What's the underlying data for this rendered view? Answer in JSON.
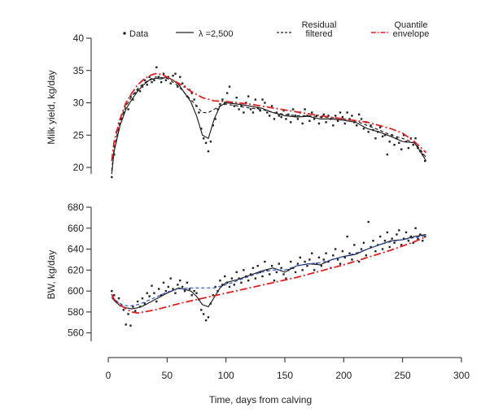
{
  "chart_data": [
    {
      "type": "line",
      "title": "",
      "ylabel": "Milk yield, kg/day",
      "xlabel": "",
      "xlim": [
        0,
        300
      ],
      "ylim": [
        19,
        40
      ],
      "yticks": [
        20,
        25,
        30,
        35,
        40
      ],
      "legend": {
        "placement": "top",
        "entries": [
          {
            "label": "Data",
            "style": "dots",
            "color": "#222222"
          },
          {
            "label": "λ =2,500",
            "style": "solid",
            "color": "#222222"
          },
          {
            "label": "Residual filtered",
            "style": "dashed",
            "color": "#222222"
          },
          {
            "label": "Quantile envelope",
            "style": "dashdot",
            "color": "#e02020"
          }
        ]
      },
      "series": [
        {
          "name": "λ =2,500",
          "style": "solid",
          "color": "#222222",
          "x": [
            3,
            5,
            10,
            15,
            20,
            25,
            30,
            35,
            40,
            45,
            50,
            55,
            60,
            65,
            70,
            75,
            80,
            85,
            90,
            95,
            100,
            110,
            120,
            130,
            140,
            150,
            160,
            170,
            180,
            190,
            200,
            210,
            220,
            230,
            240,
            250,
            260,
            265,
            270
          ],
          "y": [
            19.0,
            22.5,
            26.5,
            29.0,
            30.5,
            31.8,
            32.8,
            33.5,
            33.8,
            33.7,
            34.0,
            33.5,
            32.8,
            31.5,
            30.2,
            28.0,
            25.0,
            24.5,
            27.5,
            29.5,
            30.0,
            29.8,
            29.5,
            29.2,
            28.5,
            28.0,
            27.8,
            27.9,
            27.5,
            27.5,
            27.3,
            27.0,
            26.0,
            25.5,
            24.8,
            24.0,
            23.8,
            22.5,
            21.0
          ]
        },
        {
          "name": "Residual filtered",
          "style": "dashed",
          "color": "#222222",
          "x": [
            3,
            5,
            10,
            15,
            20,
            25,
            30,
            35,
            40,
            45,
            50,
            55,
            60,
            65,
            70,
            75,
            80,
            85,
            90,
            95,
            100,
            110,
            120,
            130,
            140,
            150,
            160,
            170,
            180,
            190,
            200,
            210,
            220,
            230,
            240,
            250,
            260,
            265,
            270
          ],
          "y": [
            19.5,
            23.0,
            27.0,
            29.5,
            31.0,
            32.2,
            33.0,
            33.6,
            34.0,
            33.9,
            33.8,
            33.2,
            32.5,
            31.5,
            30.5,
            29.5,
            28.5,
            28.5,
            29.0,
            29.5,
            29.8,
            29.5,
            29.2,
            29.0,
            28.5,
            28.2,
            28.0,
            28.0,
            27.8,
            27.7,
            27.5,
            27.2,
            26.5,
            25.8,
            25.0,
            24.5,
            23.8,
            22.8,
            21.5
          ]
        },
        {
          "name": "Quantile envelope",
          "style": "dashdot",
          "color": "#e02020",
          "x": [
            3,
            5,
            10,
            15,
            20,
            25,
            30,
            35,
            40,
            45,
            50,
            60,
            70,
            80,
            90,
            100,
            120,
            140,
            160,
            180,
            200,
            220,
            240,
            250,
            260,
            270
          ],
          "y": [
            21.0,
            24.0,
            27.5,
            30.0,
            31.5,
            32.8,
            33.6,
            34.2,
            34.5,
            34.4,
            34.0,
            33.0,
            31.8,
            30.8,
            30.3,
            30.2,
            29.8,
            29.2,
            28.6,
            28.0,
            27.5,
            27.0,
            26.0,
            25.3,
            24.0,
            22.3
          ]
        }
      ],
      "points": {
        "name": "Data",
        "x": [
          3,
          5,
          7,
          9,
          11,
          13,
          15,
          17,
          19,
          21,
          23,
          25,
          27,
          29,
          31,
          33,
          35,
          37,
          39,
          41,
          43,
          45,
          47,
          49,
          51,
          53,
          55,
          57,
          59,
          61,
          63,
          65,
          67,
          69,
          71,
          73,
          75,
          77,
          79,
          81,
          83,
          85,
          87,
          89,
          91,
          93,
          95,
          97,
          99,
          101,
          103,
          105,
          107,
          109,
          111,
          113,
          115,
          117,
          119,
          121,
          123,
          125,
          127,
          129,
          131,
          133,
          135,
          137,
          139,
          141,
          143,
          145,
          147,
          149,
          151,
          153,
          155,
          157,
          159,
          161,
          163,
          165,
          167,
          169,
          171,
          173,
          175,
          177,
          179,
          181,
          183,
          185,
          187,
          189,
          191,
          193,
          195,
          197,
          199,
          201,
          203,
          205,
          207,
          209,
          211,
          213,
          215,
          217,
          219,
          221,
          223,
          225,
          227,
          229,
          231,
          233,
          235,
          237,
          239,
          241,
          243,
          245,
          247,
          249,
          251,
          253,
          255,
          257,
          259,
          261,
          263,
          265,
          267,
          269
        ],
        "y": [
          18.5,
          22.0,
          25.5,
          26.8,
          27.5,
          28.5,
          29.8,
          29.0,
          31.0,
          30.5,
          31.5,
          32.0,
          31.8,
          32.5,
          33.5,
          32.8,
          34.0,
          33.2,
          33.5,
          35.5,
          34.0,
          33.2,
          34.5,
          33.5,
          34.0,
          33.0,
          34.2,
          34.5,
          32.5,
          34.0,
          33.0,
          32.5,
          31.0,
          32.0,
          31.5,
          30.5,
          29.5,
          28.5,
          26.0,
          24.5,
          23.8,
          22.5,
          24.0,
          26.5,
          27.5,
          29.0,
          29.8,
          30.5,
          30.0,
          31.5,
          32.5,
          30.0,
          29.5,
          30.8,
          29.0,
          29.5,
          28.5,
          30.0,
          31.0,
          29.0,
          28.5,
          30.5,
          29.2,
          28.8,
          30.5,
          30.0,
          28.5,
          28.0,
          29.5,
          27.5,
          28.5,
          28.0,
          27.8,
          28.8,
          27.5,
          28.2,
          27.0,
          29.0,
          28.0,
          27.5,
          28.5,
          26.8,
          29.0,
          28.0,
          27.2,
          28.5,
          27.5,
          28.0,
          26.8,
          27.8,
          28.2,
          27.0,
          28.0,
          27.5,
          26.5,
          28.0,
          27.2,
          28.5,
          27.8,
          26.8,
          28.5,
          27.5,
          28.0,
          27.0,
          26.5,
          28.2,
          27.5,
          26.0,
          27.0,
          25.5,
          26.5,
          25.8,
          24.5,
          25.5,
          26.2,
          24.8,
          25.0,
          22.0,
          24.0,
          25.0,
          23.5,
          24.5,
          23.8,
          22.8,
          25.0,
          24.0,
          23.0,
          24.5,
          23.5,
          24.5,
          23.0,
          22.5,
          22.0,
          21.0
        ]
      }
    },
    {
      "type": "line",
      "title": "",
      "ylabel": "BW, kg/day",
      "xlabel": "Time, days from calving",
      "xlim": [
        0,
        300
      ],
      "ylim": [
        552,
        680
      ],
      "yticks": [
        560,
        580,
        600,
        620,
        640,
        660,
        680
      ],
      "xticks": [
        0,
        50,
        100,
        150,
        200,
        250,
        300
      ],
      "series": [
        {
          "name": "λ =2,500",
          "style": "solid",
          "color": "#222222",
          "x": [
            3,
            5,
            10,
            15,
            20,
            25,
            30,
            40,
            50,
            60,
            70,
            75,
            80,
            85,
            90,
            95,
            100,
            110,
            120,
            130,
            140,
            150,
            160,
            170,
            180,
            190,
            200,
            210,
            220,
            230,
            240,
            250,
            260,
            270
          ],
          "y": [
            594,
            591,
            586,
            584,
            583,
            584,
            586,
            592,
            598,
            603,
            600,
            595,
            587,
            585,
            594,
            603,
            608,
            611,
            615,
            619,
            622,
            618,
            624,
            626,
            625,
            630,
            633,
            635,
            640,
            644,
            648,
            649,
            652,
            654
          ]
        },
        {
          "name": "Residual filtered",
          "style": "dashed",
          "color": "#3050d0",
          "x": [
            3,
            5,
            10,
            15,
            20,
            25,
            30,
            40,
            50,
            60,
            70,
            80,
            90,
            100,
            110,
            120,
            130,
            140,
            150,
            160,
            170,
            180,
            190,
            200,
            210,
            220,
            230,
            240,
            250,
            260,
            270
          ],
          "y": [
            596,
            592,
            588,
            586,
            586,
            587,
            589,
            594,
            599,
            602,
            603,
            603,
            603,
            606,
            610,
            614,
            618,
            620,
            620,
            624,
            626,
            627,
            630,
            633,
            636,
            640,
            644,
            647,
            649,
            651,
            653
          ]
        },
        {
          "name": "Quantile envelope",
          "style": "dashdot",
          "color": "#e02020",
          "x": [
            3,
            5,
            10,
            15,
            20,
            25,
            30,
            40,
            50,
            60,
            80,
            100,
            120,
            140,
            160,
            180,
            200,
            220,
            240,
            260,
            270
          ],
          "y": [
            597,
            592,
            587,
            583,
            580,
            579,
            580,
            582,
            585,
            588,
            593,
            598,
            603,
            608,
            613,
            619,
            625,
            632,
            639,
            647,
            652
          ]
        }
      ],
      "points": {
        "name": "Data",
        "x": [
          3,
          5,
          7,
          9,
          11,
          13,
          15,
          17,
          19,
          21,
          23,
          25,
          27,
          29,
          31,
          33,
          35,
          37,
          39,
          41,
          43,
          45,
          47,
          49,
          51,
          53,
          55,
          57,
          59,
          61,
          63,
          65,
          67,
          69,
          71,
          73,
          75,
          77,
          79,
          81,
          83,
          85,
          87,
          89,
          91,
          93,
          95,
          97,
          99,
          101,
          103,
          105,
          107,
          109,
          111,
          113,
          115,
          117,
          119,
          121,
          123,
          125,
          127,
          129,
          131,
          133,
          135,
          137,
          139,
          141,
          143,
          145,
          147,
          149,
          151,
          153,
          155,
          157,
          159,
          161,
          163,
          165,
          167,
          169,
          171,
          173,
          175,
          177,
          179,
          181,
          183,
          185,
          187,
          189,
          191,
          193,
          195,
          197,
          199,
          201,
          203,
          205,
          207,
          209,
          211,
          213,
          215,
          217,
          219,
          221,
          223,
          225,
          227,
          229,
          231,
          233,
          235,
          237,
          239,
          241,
          243,
          245,
          247,
          249,
          251,
          253,
          255,
          257,
          259,
          261,
          263,
          265,
          267,
          269
        ],
        "y": [
          600,
          596,
          590,
          593,
          586,
          582,
          568,
          578,
          567,
          585,
          581,
          590,
          585,
          593,
          588,
          598,
          595,
          605,
          598,
          590,
          602,
          596,
          608,
          600,
          604,
          612,
          602,
          598,
          606,
          610,
          604,
          600,
          608,
          602,
          596,
          600,
          598,
          592,
          582,
          578,
          572,
          575,
          588,
          596,
          604,
          600,
          610,
          606,
          614,
          608,
          604,
          612,
          606,
          618,
          612,
          608,
          620,
          614,
          610,
          616,
          622,
          612,
          624,
          618,
          614,
          628,
          620,
          616,
          624,
          610,
          618,
          626,
          622,
          616,
          612,
          620,
          628,
          622,
          618,
          626,
          632,
          620,
          628,
          624,
          630,
          636,
          620,
          626,
          632,
          624,
          630,
          636,
          628,
          622,
          634,
          640,
          630,
          626,
          638,
          632,
          652,
          636,
          630,
          644,
          636,
          628,
          640,
          646,
          634,
          666,
          642,
          648,
          638,
          644,
          652,
          640,
          648,
          656,
          642,
          650,
          646,
          654,
          658,
          644,
          650,
          656,
          648,
          652,
          646,
          660,
          650,
          654,
          648,
          652
        ]
      }
    }
  ]
}
